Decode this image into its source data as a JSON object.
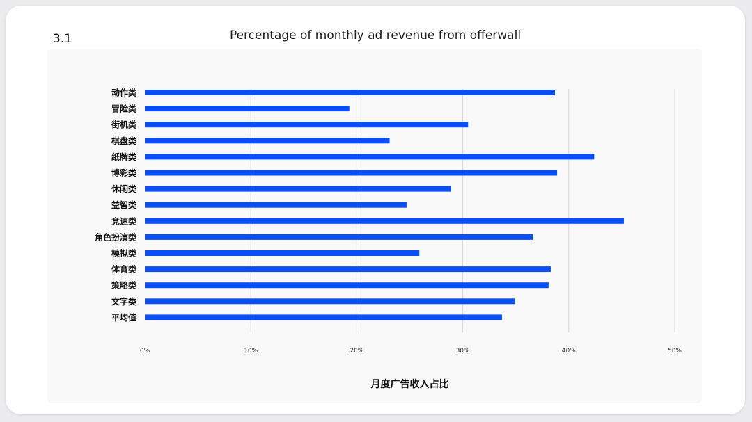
{
  "header": {
    "section_number": "3.1"
  },
  "chart_data": {
    "type": "bar",
    "orientation": "horizontal",
    "title": "Percentage of monthly ad revenue from offerwall",
    "xlabel": "月度广告收入占比",
    "ylabel": "",
    "categories": [
      "动作类",
      "冒险类",
      "街机类",
      "棋盘类",
      "纸牌类",
      "博彩类",
      "休闲类",
      "益智类",
      "竞速类",
      "角色扮演类",
      "模拟类",
      "体育类",
      "策略类",
      "文字类",
      "平均值"
    ],
    "values": [
      38.7,
      19.3,
      30.5,
      23.1,
      42.4,
      38.9,
      28.9,
      24.7,
      45.2,
      36.6,
      25.9,
      38.3,
      38.1,
      34.9,
      33.7
    ],
    "xlim": [
      0,
      50
    ],
    "x_ticks": [
      0,
      10,
      20,
      30,
      40,
      50
    ],
    "x_tick_labels": [
      "0%",
      "10%",
      "20%",
      "30%",
      "40%",
      "50%"
    ],
    "grid": "vertical",
    "legend": "none",
    "bar_color": "#0a4ff5"
  }
}
